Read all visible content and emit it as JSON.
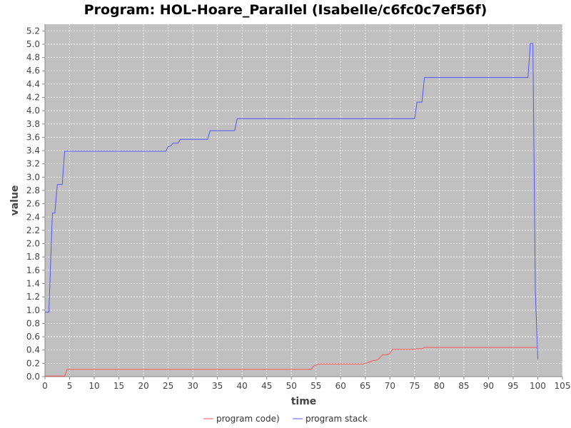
{
  "chart_data": {
    "type": "line",
    "title": "Program: HOL-Hoare_Parallel (Isabelle/c6fc0c7ef56f)",
    "xlabel": "time",
    "ylabel": "value",
    "xlim": [
      0,
      105
    ],
    "ylim": [
      0,
      5.3
    ],
    "xticks": [
      0,
      5,
      10,
      15,
      20,
      25,
      30,
      35,
      40,
      45,
      50,
      55,
      60,
      65,
      70,
      75,
      80,
      85,
      90,
      95,
      100,
      105
    ],
    "yticks": [
      0.0,
      0.2,
      0.4,
      0.6,
      0.8,
      1.0,
      1.2,
      1.4,
      1.6,
      1.8,
      2.0,
      2.2,
      2.4,
      2.6,
      2.8,
      3.0,
      3.2,
      3.4,
      3.6,
      3.8,
      4.0,
      4.2,
      4.4,
      4.6,
      4.8,
      5.0,
      5.2
    ],
    "grid": true,
    "legend_position": "bottom",
    "background_color": "#c0c0c0",
    "series": [
      {
        "name": "program code)",
        "color": "#ff5555",
        "points": [
          [
            0,
            0.01
          ],
          [
            4,
            0.01
          ],
          [
            4.5,
            0.11
          ],
          [
            54,
            0.11
          ],
          [
            54.5,
            0.16
          ],
          [
            55.5,
            0.19
          ],
          [
            64.5,
            0.19
          ],
          [
            65.5,
            0.21
          ],
          [
            66.5,
            0.24
          ],
          [
            67.5,
            0.25
          ],
          [
            68.5,
            0.33
          ],
          [
            69.5,
            0.33
          ],
          [
            70,
            0.35
          ],
          [
            70.5,
            0.41
          ],
          [
            75,
            0.41
          ],
          [
            75.5,
            0.42
          ],
          [
            76.5,
            0.42
          ],
          [
            77,
            0.44
          ],
          [
            100,
            0.44
          ]
        ]
      },
      {
        "name": "program stack",
        "color": "#5555ff",
        "points": [
          [
            0,
            0.97
          ],
          [
            0.8,
            0.97
          ],
          [
            1.5,
            2.46
          ],
          [
            2,
            2.46
          ],
          [
            2.5,
            2.89
          ],
          [
            3.5,
            2.89
          ],
          [
            4,
            3.39
          ],
          [
            24.5,
            3.39
          ],
          [
            25,
            3.46
          ],
          [
            25.5,
            3.47
          ],
          [
            26,
            3.51
          ],
          [
            27,
            3.51
          ],
          [
            27.5,
            3.57
          ],
          [
            33,
            3.57
          ],
          [
            33.5,
            3.7
          ],
          [
            38.5,
            3.7
          ],
          [
            39,
            3.88
          ],
          [
            75,
            3.88
          ],
          [
            75.5,
            4.13
          ],
          [
            76.5,
            4.13
          ],
          [
            77,
            4.5
          ],
          [
            98,
            4.5
          ],
          [
            98.5,
            5.01
          ],
          [
            99,
            5.01
          ],
          [
            99.5,
            1.3
          ],
          [
            100,
            0.26
          ]
        ]
      }
    ]
  }
}
